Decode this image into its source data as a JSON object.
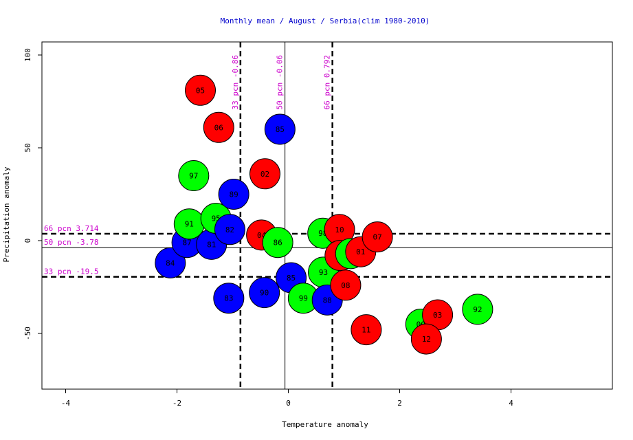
{
  "chart_data": {
    "type": "scatter",
    "title": "Monthly mean / August / Serbia(clim 1980-2010)",
    "xlabel": "Temperature anomaly",
    "ylabel": "Precipitation anomaly",
    "xlim": [
      -4.5,
      5.8
    ],
    "ylim": [
      -80,
      107
    ],
    "x_ticks": [
      -4,
      -2,
      0,
      2,
      4
    ],
    "y_ticks": [
      -50,
      0,
      50,
      100
    ],
    "grid": false,
    "colors": {
      "cold": "#0000ff",
      "normal": "#00ff00",
      "warm": "#ff0000",
      "percentile": "#cc00cc",
      "title": "#0000cc"
    },
    "percentiles": {
      "temperature": [
        {
          "label": "33 pcn -0.86",
          "value": -0.86,
          "style": "dashed"
        },
        {
          "label": "50 pcn -0.06",
          "value": -0.06,
          "style": "solid"
        },
        {
          "label": "66 pcn 0.792",
          "value": 0.792,
          "style": "dashed"
        }
      ],
      "precipitation": [
        {
          "label": "66 pcn 3.714",
          "value": 3.714,
          "style": "dashed"
        },
        {
          "label": "50 pcn -3.78",
          "value": -3.78,
          "style": "solid"
        },
        {
          "label": "33 pcn -19.5",
          "value": -19.5,
          "style": "dashed"
        }
      ]
    },
    "points": [
      {
        "label": "84",
        "x": -2.12,
        "y": -12,
        "color": "#0000ff"
      },
      {
        "label": "87",
        "x": -1.82,
        "y": -1,
        "color": "#0000ff"
      },
      {
        "label": "91",
        "x": -1.78,
        "y": 9,
        "color": "#00ff00"
      },
      {
        "label": "97",
        "x": -1.7,
        "y": 35,
        "color": "#00ff00"
      },
      {
        "label": "05",
        "x": -1.58,
        "y": 81,
        "color": "#ff0000"
      },
      {
        "label": "81",
        "x": -1.38,
        "y": -2,
        "color": "#0000ff"
      },
      {
        "label": "95",
        "x": -1.3,
        "y": 12,
        "color": "#00ff00"
      },
      {
        "label": "06",
        "x": -1.25,
        "y": 61,
        "color": "#ff0000"
      },
      {
        "label": "82",
        "x": -1.05,
        "y": 6,
        "color": "#0000ff"
      },
      {
        "label": "83",
        "x": -1.07,
        "y": -31,
        "color": "#0000ff"
      },
      {
        "label": "89",
        "x": -0.98,
        "y": 25,
        "color": "#0000ff"
      },
      {
        "label": "02",
        "x": -0.42,
        "y": 36,
        "color": "#ff0000"
      },
      {
        "label": "04",
        "x": -0.48,
        "y": 3,
        "color": "#ff0000"
      },
      {
        "label": "90",
        "x": -0.43,
        "y": -28,
        "color": "#0000ff"
      },
      {
        "label": "86",
        "x": -0.19,
        "y": -1,
        "color": "#00ff00"
      },
      {
        "label": "85",
        "x": -0.15,
        "y": 60,
        "color": "#0000ff"
      },
      {
        "label": "85",
        "x": 0.05,
        "y": -20,
        "color": "#0000ff"
      },
      {
        "label": "99",
        "x": 0.27,
        "y": -31,
        "color": "#00ff00"
      },
      {
        "label": "98",
        "x": 0.62,
        "y": 4,
        "color": "#00ff00"
      },
      {
        "label": "93",
        "x": 0.63,
        "y": -17,
        "color": "#00ff00"
      },
      {
        "label": "88",
        "x": 0.7,
        "y": -32,
        "color": "#0000ff"
      },
      {
        "label": "10",
        "x": 0.92,
        "y": 6,
        "color": "#ff0000"
      },
      {
        "label": "09",
        "x": 0.93,
        "y": -8,
        "color": "#ff0000"
      },
      {
        "label": "94",
        "x": 1.12,
        "y": -7,
        "color": "#00ff00"
      },
      {
        "label": "08",
        "x": 1.03,
        "y": -24,
        "color": "#ff0000"
      },
      {
        "label": "01",
        "x": 1.3,
        "y": -6,
        "color": "#ff0000"
      },
      {
        "label": "07",
        "x": 1.6,
        "y": 2,
        "color": "#ff0000"
      },
      {
        "label": "11",
        "x": 1.4,
        "y": -48,
        "color": "#ff0000"
      },
      {
        "label": "00",
        "x": 2.38,
        "y": -45,
        "color": "#00ff00"
      },
      {
        "label": "03",
        "x": 2.68,
        "y": -40,
        "color": "#ff0000"
      },
      {
        "label": "12",
        "x": 2.48,
        "y": -53,
        "color": "#ff0000"
      },
      {
        "label": "92",
        "x": 3.4,
        "y": -37,
        "color": "#00ff00"
      }
    ]
  }
}
